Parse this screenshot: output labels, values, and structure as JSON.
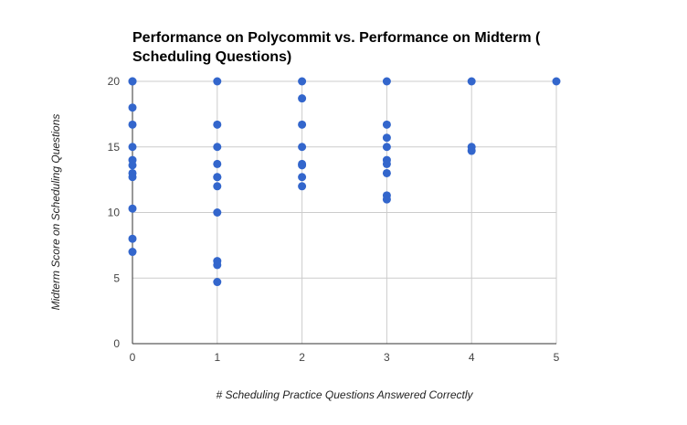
{
  "chart_data": {
    "type": "scatter",
    "title_lines": [
      "Performance on Polycommit vs. Performance on Midterm (",
      "Scheduling Questions)"
    ],
    "xlabel": "# Scheduling Practice Questions Answered Correctly",
    "ylabel": "Midterm Score on Scheduling Questions",
    "xlim": [
      0,
      5
    ],
    "ylim": [
      0,
      20
    ],
    "xticks": [
      "0",
      "1",
      "2",
      "3",
      "4",
      "5"
    ],
    "yticks": [
      "0",
      "5",
      "10",
      "15",
      "20"
    ],
    "grid": true,
    "legend": "none",
    "point_color": "#3366cc",
    "series": [
      {
        "points": [
          [
            0,
            20
          ],
          [
            0,
            20
          ],
          [
            0,
            18
          ],
          [
            0,
            16.7
          ],
          [
            0,
            15
          ],
          [
            0,
            14
          ],
          [
            0,
            13.6
          ],
          [
            0,
            13
          ],
          [
            0,
            12.7
          ],
          [
            0,
            10.3
          ],
          [
            0,
            8
          ],
          [
            0,
            7
          ],
          [
            1,
            20
          ],
          [
            1,
            16.7
          ],
          [
            1,
            15
          ],
          [
            1,
            13.7
          ],
          [
            1,
            12.7
          ],
          [
            1,
            12.7
          ],
          [
            1,
            12
          ],
          [
            1,
            10
          ],
          [
            1,
            6.3
          ],
          [
            1,
            6
          ],
          [
            1,
            4.7
          ],
          [
            2,
            20
          ],
          [
            2,
            18.7
          ],
          [
            2,
            16.7
          ],
          [
            2,
            15
          ],
          [
            2,
            13.7
          ],
          [
            2,
            13.6
          ],
          [
            2,
            12.7
          ],
          [
            2,
            12
          ],
          [
            3,
            20
          ],
          [
            3,
            16.7
          ],
          [
            3,
            15.7
          ],
          [
            3,
            15
          ],
          [
            3,
            14
          ],
          [
            3,
            13.7
          ],
          [
            3,
            13
          ],
          [
            3,
            11.3
          ],
          [
            3,
            11
          ],
          [
            4,
            20
          ],
          [
            4,
            15
          ],
          [
            4,
            14.7
          ],
          [
            5,
            20
          ]
        ]
      }
    ]
  }
}
